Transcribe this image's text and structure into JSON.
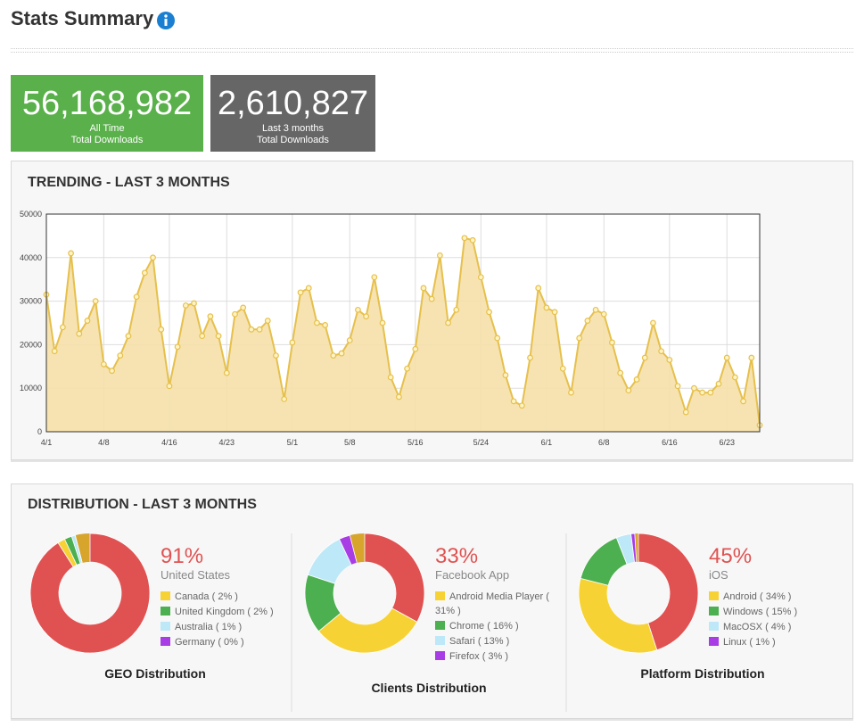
{
  "header": {
    "title": "Stats Summary"
  },
  "stats": [
    {
      "value": "56,168,982",
      "lines": [
        "All Time",
        "Total Downloads"
      ],
      "color": "#5ab04a"
    },
    {
      "value": "2,610,827",
      "lines": [
        "Last 3 months",
        "Total Downloads"
      ],
      "color": "#666666"
    }
  ],
  "distribution": {
    "title": "DISTRIBUTION - LAST 3 MONTHS"
  },
  "chart_data": [
    {
      "type": "area",
      "title": "TRENDING - LAST 3 MONTHS",
      "color": "#e6c04c",
      "fill_color": "#f5e0a8",
      "grid": true,
      "ylim": [
        0,
        50000
      ],
      "yticks": [
        0,
        10000,
        20000,
        30000,
        40000,
        50000
      ],
      "categories": [
        "4/1",
        null,
        null,
        null,
        null,
        null,
        null,
        "4/8",
        null,
        null,
        null,
        null,
        null,
        null,
        null,
        "4/16",
        null,
        null,
        null,
        null,
        null,
        null,
        "4/23",
        null,
        null,
        null,
        null,
        null,
        null,
        null,
        "5/1",
        null,
        null,
        null,
        null,
        null,
        null,
        "5/8",
        null,
        null,
        null,
        null,
        null,
        null,
        null,
        "5/16",
        null,
        null,
        null,
        null,
        null,
        null,
        null,
        "5/24",
        null,
        null,
        null,
        null,
        null,
        null,
        null,
        "6/1",
        null,
        null,
        null,
        null,
        null,
        null,
        "6/8",
        null,
        null,
        null,
        null,
        null,
        null,
        null,
        "6/16",
        null,
        null,
        null,
        null,
        null,
        null,
        "6/23",
        null,
        null,
        null,
        null
      ],
      "values": [
        31500,
        18500,
        24000,
        41000,
        22500,
        25500,
        30000,
        15500,
        14000,
        17500,
        22000,
        31000,
        36500,
        40000,
        23500,
        10500,
        19500,
        29000,
        29500,
        22000,
        26500,
        22000,
        13500,
        27000,
        28500,
        23500,
        23500,
        25500,
        17500,
        7500,
        20500,
        32000,
        33000,
        25000,
        24500,
        17500,
        18000,
        21000,
        28000,
        26500,
        35500,
        25000,
        12500,
        8000,
        14500,
        19000,
        33000,
        30500,
        40500,
        25000,
        28000,
        44500,
        44000,
        35500,
        27500,
        21500,
        13000,
        7000,
        6000,
        17000,
        33000,
        28500,
        27500,
        14500,
        9000,
        21500,
        25500,
        28000,
        27000,
        20500,
        13500,
        9500,
        12000,
        17000,
        25000,
        18500,
        16500,
        10500,
        4500,
        10000,
        9000,
        9000,
        11000,
        17000,
        12500,
        7000,
        17000,
        1500
      ]
    },
    {
      "type": "donut",
      "title": "GEO Distribution",
      "categories": [
        "United States",
        "Canada",
        "United Kingdom",
        "Australia",
        "Germany"
      ],
      "values": [
        91,
        2,
        2,
        1,
        0
      ],
      "value_labels": [
        "91%",
        "( 2% )",
        "( 2% )",
        "( 1% )",
        "( 0% )"
      ],
      "colors": [
        "#e05252",
        "#f7d234",
        "#4caf50",
        "#bde8f7",
        "#a83de6"
      ]
    },
    {
      "type": "donut",
      "title": "Clients Distribution",
      "categories": [
        "Facebook App",
        "Android Media Player",
        "Chrome",
        "Safari",
        "Firefox"
      ],
      "values": [
        33,
        31,
        16,
        13,
        3
      ],
      "value_labels": [
        "33%",
        "( 31% )",
        "( 16% )",
        "( 13% )",
        "( 3% )"
      ],
      "colors": [
        "#e05252",
        "#f7d234",
        "#4caf50",
        "#bde8f7",
        "#a83de6"
      ]
    },
    {
      "type": "donut",
      "title": "Platform Distribution",
      "categories": [
        "iOS",
        "Android",
        "Windows",
        "MacOSX",
        "Linux"
      ],
      "values": [
        45,
        34,
        15,
        4,
        1
      ],
      "value_labels": [
        "45%",
        "( 34% )",
        "( 15% )",
        "( 4% )",
        "( 1% )"
      ],
      "colors": [
        "#e05252",
        "#f7d234",
        "#4caf50",
        "#bde8f7",
        "#a83de6"
      ]
    }
  ]
}
